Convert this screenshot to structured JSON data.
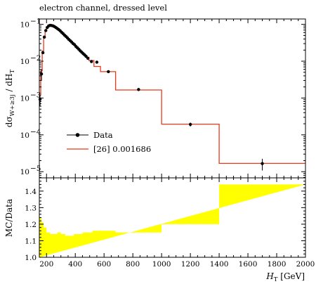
{
  "chart_data": [
    {
      "type": "line",
      "title": "electron channel, dressed level",
      "xlabel": "H_T [GeV]",
      "ylabel": "dσ_{W+≥3j} / dH_T",
      "yscale": "log",
      "xlim": [
        150,
        2000
      ],
      "ylim": [
        6.8e-06,
        0.14
      ],
      "x_tick_labels": [
        "200",
        "400",
        "600",
        "800",
        "1000",
        "1200",
        "1400",
        "1600",
        "1800",
        "2000"
      ],
      "y_tick_labels": [
        "10",
        "10",
        "10",
        "10",
        "10"
      ],
      "y_tick_exponents": [
        "−5",
        "−4",
        "−3",
        "−2",
        "−1"
      ],
      "y_tick_values": [
        1e-05,
        0.0001,
        0.001,
        0.01,
        0.1
      ],
      "legend_position": "center-left",
      "series": [
        {
          "name": "Data",
          "style": "points",
          "color": "#000000",
          "x": [
            155,
            165,
            175,
            185,
            195,
            205,
            215,
            225,
            235,
            245,
            255,
            265,
            275,
            285,
            295,
            305,
            315,
            325,
            335,
            345,
            355,
            365,
            375,
            385,
            395,
            405,
            415,
            425,
            435,
            445,
            455,
            465,
            475,
            487.5,
            512.5,
            550,
            630,
            840,
            1200,
            1700
          ],
          "y": [
            0.00092,
            0.0045,
            0.017,
            0.045,
            0.068,
            0.082,
            0.091,
            0.094,
            0.093,
            0.091,
            0.087,
            0.082,
            0.077,
            0.072,
            0.067,
            0.061,
            0.056,
            0.051,
            0.047,
            0.043,
            0.039,
            0.036,
            0.033,
            0.03,
            0.028,
            0.025,
            0.023,
            0.021,
            0.019,
            0.0175,
            0.016,
            0.0148,
            0.0135,
            0.012,
            0.0098,
            0.0094,
            0.0052,
            0.0017,
            0.000192,
            1.66e-05
          ]
        },
        {
          "name": "[26] 0.001686",
          "style": "step",
          "color": "#e8391a",
          "edges": [
            150,
            160,
            170,
            180,
            190,
            200,
            210,
            220,
            230,
            240,
            250,
            260,
            270,
            280,
            290,
            300,
            310,
            320,
            330,
            340,
            350,
            360,
            370,
            380,
            390,
            400,
            410,
            420,
            430,
            440,
            450,
            460,
            470,
            480,
            495,
            530,
            575,
            625,
            680,
            1000,
            1400,
            2000
          ],
          "values": [
            0.0012,
            0.0055,
            0.019,
            0.048,
            0.07,
            0.085,
            0.093,
            0.096,
            0.095,
            0.092,
            0.088,
            0.083,
            0.078,
            0.073,
            0.068,
            0.062,
            0.057,
            0.052,
            0.048,
            0.044,
            0.04,
            0.037,
            0.034,
            0.031,
            0.029,
            0.026,
            0.024,
            0.022,
            0.02,
            0.018,
            0.0165,
            0.015,
            0.014,
            0.0128,
            0.0104,
            0.0072,
            0.0052,
            0.0052,
            0.00165,
            0.000195,
            1.68e-05
          ]
        }
      ]
    },
    {
      "type": "area",
      "xlabel": "H_T [GeV]",
      "ylabel": "MC/Data",
      "xlim": [
        150,
        2000
      ],
      "ylim": [
        1.0,
        1.48
      ],
      "x_tick_labels": [
        "200",
        "400",
        "600",
        "800",
        "1000",
        "1200",
        "1400",
        "1600",
        "1800",
        "2000"
      ],
      "y_tick_labels": [
        "1.0",
        "1.1",
        "1.2",
        "1.3",
        "1.4"
      ],
      "y_tick_values": [
        1.0,
        1.1,
        1.2,
        1.3,
        1.4
      ],
      "band_color": "#ffff00",
      "edges": [
        150,
        165,
        180,
        200,
        225,
        250,
        275,
        300,
        330,
        360,
        390,
        420,
        450,
        480,
        520,
        570,
        620,
        680,
        1000,
        1400,
        2000
      ],
      "values": [
        1.24,
        1.21,
        1.18,
        1.15,
        1.14,
        1.14,
        1.15,
        1.14,
        1.13,
        1.13,
        1.14,
        1.14,
        1.15,
        1.15,
        1.16,
        1.16,
        1.16,
        1.15,
        1.2,
        1.44,
        1.44
      ]
    }
  ]
}
